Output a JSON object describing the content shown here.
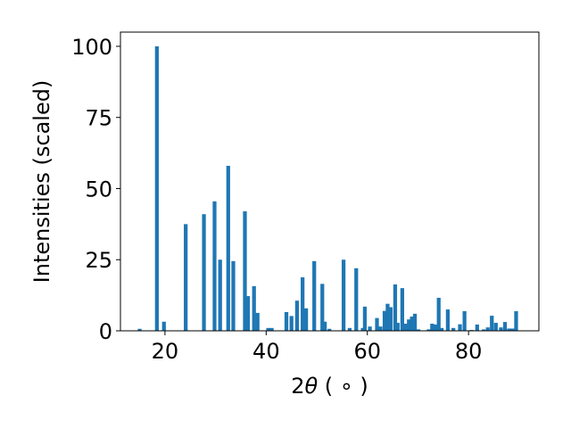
{
  "chart_data": {
    "type": "bar",
    "title": "",
    "xlabel_main": "2",
    "xlabel_theta": "θ",
    "xlabel_unit": " ( ∘ )",
    "ylabel": "Intensities (scaled)",
    "xlim": [
      11.2,
      93.9
    ],
    "ylim": [
      0,
      105
    ],
    "xticks": [
      20,
      40,
      60,
      80
    ],
    "yticks": [
      0,
      25,
      50,
      75,
      100
    ],
    "bar_color": "#1f77b4",
    "bar_width": 0.75,
    "grid": false,
    "legend": "none",
    "x": [
      15.0,
      18.4,
      19.8,
      24.1,
      27.7,
      29.8,
      30.9,
      32.5,
      33.5,
      35.8,
      36.4,
      37.6,
      38.3,
      40.4,
      41.1,
      44.0,
      45.0,
      46.1,
      47.2,
      47.9,
      49.5,
      51.1,
      51.6,
      52.5,
      55.3,
      56.5,
      57.8,
      59.1,
      59.5,
      60.5,
      61.9,
      62.6,
      63.4,
      64.0,
      64.6,
      65.5,
      66.0,
      66.9,
      67.6,
      68.2,
      68.8,
      69.4,
      70.1,
      72.1,
      72.8,
      73.5,
      74.1,
      74.7,
      75.9,
      77.0,
      78.3,
      79.2,
      80.6,
      81.7,
      83.0,
      83.8,
      84.6,
      85.4,
      86.4,
      87.2,
      88.0,
      88.7,
      89.4
    ],
    "values": [
      0.7,
      100,
      3.2,
      37.5,
      41,
      45.5,
      25,
      58,
      24.5,
      42,
      12.2,
      15.7,
      6.3,
      1,
      1,
      6.6,
      5.2,
      10.6,
      18.8,
      7.9,
      24.5,
      16.5,
      3.2,
      0.7,
      25,
      1,
      22,
      1,
      8.5,
      1.5,
      4.5,
      1.5,
      7,
      9.5,
      8.3,
      16.3,
      2.8,
      15,
      2.5,
      4,
      5,
      6,
      0.5,
      0.5,
      2.5,
      2.2,
      11.6,
      1,
      7.5,
      1,
      2.3,
      6.9,
      0.3,
      2.2,
      0.5,
      1.2,
      5.3,
      2.8,
      1.2,
      3.1,
      0.8,
      0.8,
      6.9
    ]
  }
}
